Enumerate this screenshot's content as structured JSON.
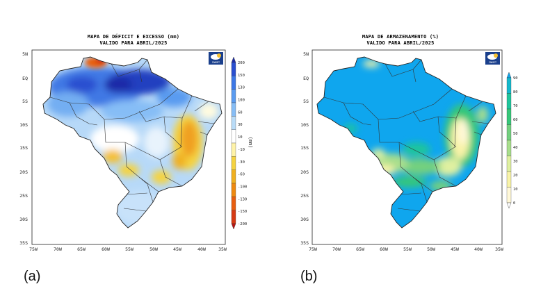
{
  "maps": [
    {
      "id": "a",
      "title_line1": "MAPA DE DÉFICIT E EXCESSO (mm)",
      "title_line2": "VALIDO PARA ABRIL/2025",
      "logo": "INMET",
      "panel_label": "(a)",
      "colorbar_unit": "(mm)",
      "colorbar_ticks": [
        "200",
        "150",
        "130",
        "100",
        "60",
        "30",
        "10",
        "-10",
        "-30",
        "-60",
        "-100",
        "-130",
        "-150",
        "-200"
      ],
      "colorbar_colors": [
        "#1c2aa8",
        "#2a4fd0",
        "#3d78e6",
        "#5a9bf0",
        "#86bdf6",
        "#b9dcf8",
        "#ffffff",
        "#fff3a8",
        "#f5d340",
        "#f0b020",
        "#ee8a10",
        "#e85e10",
        "#d63a14",
        "#b81414"
      ]
    },
    {
      "id": "b",
      "title_line1": "MAPA DE ARMAZENAMENTO (%)",
      "title_line2": "VALIDO PARA ABRIL/2025",
      "logo": "INMET",
      "panel_label": "(b)",
      "colorbar_unit": "",
      "colorbar_ticks": [
        "90",
        "80",
        "70",
        "60",
        "50",
        "40",
        "30",
        "20",
        "10",
        "0"
      ],
      "colorbar_colors": [
        "#0fa6ee",
        "#13b8cc",
        "#1ec59c",
        "#36c779",
        "#73d07f",
        "#a8de8c",
        "#dff0a0",
        "#f8f3a8",
        "#fff8d8",
        "#ffffff"
      ]
    }
  ],
  "axes": {
    "lat_labels": [
      "5N",
      "EQ",
      "5S",
      "10S",
      "15S",
      "20S",
      "25S",
      "30S",
      "35S"
    ],
    "lon_labels": [
      "75W",
      "70W",
      "65W",
      "60W",
      "55W",
      "50W",
      "45W",
      "40W",
      "35W"
    ]
  },
  "legend_colors": {
    "ocean_bg": "#ffffff",
    "outline": "#222222"
  }
}
